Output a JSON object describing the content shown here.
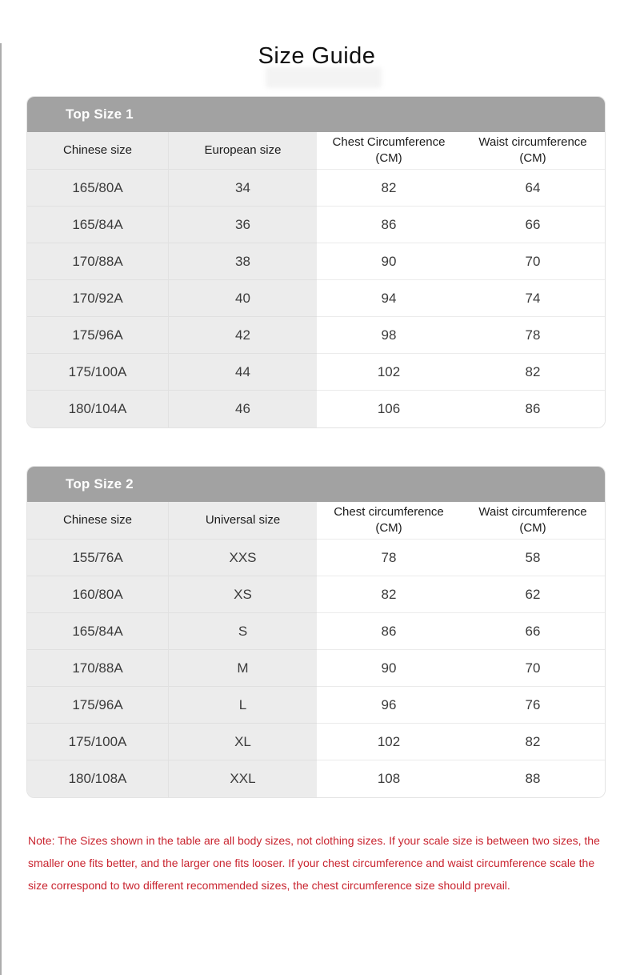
{
  "page": {
    "title": "Size Guide"
  },
  "colors": {
    "titlebar_gray": "#a2a2a2",
    "shaded_cell_gray": "#ececec",
    "note_red": "#c9242f",
    "page_left_border": "#adadad"
  },
  "tables": [
    {
      "title": "Top Size 1",
      "columns": [
        "Chinese size",
        "European size",
        "Chest Circumference (CM)",
        "Waist circumference (CM)"
      ],
      "rows": [
        [
          "165/80A",
          "34",
          "82",
          "64"
        ],
        [
          "165/84A",
          "36",
          "86",
          "66"
        ],
        [
          "170/88A",
          "38",
          "90",
          "70"
        ],
        [
          "170/92A",
          "40",
          "94",
          "74"
        ],
        [
          "175/96A",
          "42",
          "98",
          "78"
        ],
        [
          "175/100A",
          "44",
          "102",
          "82"
        ],
        [
          "180/104A",
          "46",
          "106",
          "86"
        ]
      ]
    },
    {
      "title": "Top Size 2",
      "columns": [
        "Chinese size",
        "Universal size",
        "Chest circumference (CM)",
        "Waist circumference (CM)"
      ],
      "rows": [
        [
          "155/76A",
          "XXS",
          "78",
          "58"
        ],
        [
          "160/80A",
          "XS",
          "82",
          "62"
        ],
        [
          "165/84A",
          "S",
          "86",
          "66"
        ],
        [
          "170/88A",
          "M",
          "90",
          "70"
        ],
        [
          "175/96A",
          "L",
          "96",
          "76"
        ],
        [
          "175/100A",
          "XL",
          "102",
          "82"
        ],
        [
          "180/108A",
          "XXL",
          "108",
          "88"
        ]
      ]
    }
  ],
  "note": {
    "text": "Note: The Sizes shown in the table are all body sizes, not clothing sizes. If your scale size is between two sizes, the smaller one fits better, and the larger one fits looser. If your chest circumference and waist circumference scale the size correspond to two different recommended sizes, the chest circumference size should prevail."
  }
}
